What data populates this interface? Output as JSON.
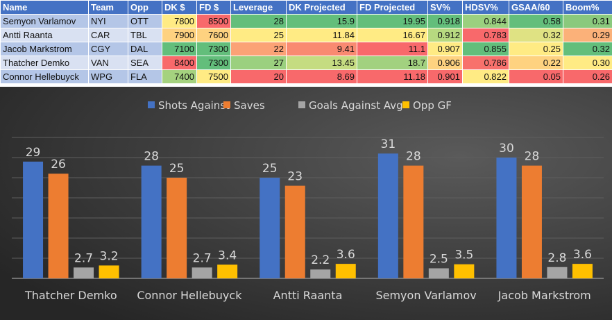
{
  "table": {
    "headers": [
      "Name",
      "Team",
      "Opp",
      "DK $",
      "FD $",
      "Leverage",
      "DK Projected",
      "FD Projected",
      "SV%",
      "HDSV%",
      "GSAA/60",
      "Boom%"
    ],
    "rows": [
      {
        "cells": [
          "Semyon Varlamov",
          "NYI",
          "OTT",
          "7800",
          "8500",
          "28",
          "15.9",
          "19.95",
          "0.918",
          "0.844",
          "0.58",
          "0.31"
        ],
        "colors": [
          "#ffeb84",
          "#f8696b",
          "#63be7b",
          "#63be7b",
          "#63be7b",
          "#63be7b",
          "#9bd07f",
          "#63be7b",
          "#8ac97d"
        ]
      },
      {
        "cells": [
          "Antti Raanta",
          "CAR",
          "TBL",
          "7900",
          "7600",
          "25",
          "11.84",
          "16.67",
          "0.912",
          "0.783",
          "0.32",
          "0.29"
        ],
        "colors": [
          "#fed280",
          "#fed280",
          "#ffeb84",
          "#ffeb84",
          "#ffeb84",
          "#b7d980",
          "#f8696b",
          "#dfe283",
          "#fbb179"
        ]
      },
      {
        "cells": [
          "Jacob Markstrom",
          "CGY",
          "DAL",
          "7100",
          "7300",
          "22",
          "9.41",
          "11.1",
          "0.907",
          "0.855",
          "0.25",
          "0.32"
        ],
        "colors": [
          "#63be7b",
          "#63be7b",
          "#fba276",
          "#f98a71",
          "#f8696b",
          "#ffeb84",
          "#63be7b",
          "#ffeb84",
          "#63be7b"
        ]
      },
      {
        "cells": [
          "Thatcher Demko",
          "VAN",
          "SEA",
          "8400",
          "7300",
          "27",
          "13.45",
          "18.7",
          "0.906",
          "0.786",
          "0.22",
          "0.30"
        ],
        "colors": [
          "#f8696b",
          "#63be7b",
          "#9bd07f",
          "#c5dc81",
          "#a2d17f",
          "#fed280",
          "#f8716c",
          "#fed280",
          "#ffeb84"
        ]
      },
      {
        "cells": [
          "Connor Hellebuyck",
          "WPG",
          "FLA",
          "7400",
          "7500",
          "20",
          "8.69",
          "11.18",
          "0.901",
          "0.822",
          "0.05",
          "0.26"
        ],
        "colors": [
          "#a5d27f",
          "#ffeb84",
          "#f8696b",
          "#f8696b",
          "#f8696b",
          "#f8696b",
          "#ffeb84",
          "#f8696b",
          "#f8696b"
        ]
      }
    ]
  },
  "chart_data": {
    "type": "bar",
    "categories": [
      "Thatcher Demko",
      "Connor Hellebuyck",
      "Antti Raanta",
      "Semyon Varlamov",
      "Jacob Markstrom"
    ],
    "series": [
      {
        "name": "Shots Against",
        "values": [
          29,
          28,
          25,
          31,
          30
        ],
        "color": "#4472c4"
      },
      {
        "name": "Saves",
        "values": [
          26,
          25,
          23,
          28,
          28
        ],
        "color": "#ed7d31"
      },
      {
        "name": "Goals Against Avg",
        "values": [
          2.7,
          2.7,
          2.2,
          2.5,
          2.8
        ],
        "color": "#a5a5a5"
      },
      {
        "name": "Opp GF",
        "values": [
          3.2,
          3.4,
          3.6,
          3.5,
          3.6
        ],
        "color": "#ffc000"
      }
    ],
    "ylim": [
      0,
      35
    ],
    "ystep": 5,
    "grid": true,
    "legend": "top"
  }
}
